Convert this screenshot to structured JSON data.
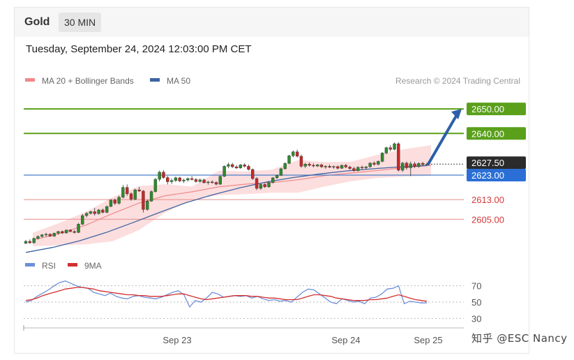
{
  "header": {
    "symbol": "Gold",
    "interval": "30 MIN"
  },
  "datetime": "Tuesday, September 24, 2024 12:03:00 PM CET",
  "legend": [
    {
      "label": "MA 20 + Bollinger Bands",
      "color": "#ef8a8a"
    },
    {
      "label": "MA 50",
      "color": "#3f63a3"
    }
  ],
  "credit": "Research © 2024 Trading Central",
  "watermark": "知乎 @ESC Nancy",
  "chart_data": [
    {
      "type": "candlestick",
      "x_ticks": [
        "Sep 23",
        "Sep 24",
        "Sep 25"
      ],
      "ylim": [
        2592,
        2656
      ],
      "levels": [
        {
          "value": 2650.0,
          "label": "2650.00",
          "color": "#5aa01b",
          "style": "target"
        },
        {
          "value": 2640.0,
          "label": "2640.00",
          "color": "#5aa01b",
          "style": "target"
        },
        {
          "value": 2627.5,
          "label": "2627.50",
          "color": "#222222",
          "style": "last"
        },
        {
          "value": 2623.0,
          "label": "2623.00",
          "color": "#2b6fd6",
          "style": "pivot"
        },
        {
          "value": 2613.0,
          "label": "2613.00",
          "color": "#d33a3a",
          "style": "support"
        },
        {
          "value": 2605.0,
          "label": "2605.00",
          "color": "#d33a3a",
          "style": "support"
        }
      ],
      "candles": [
        [
          2595.2,
          2596.6,
          2594.9,
          2596.0
        ],
        [
          2596.0,
          2596.8,
          2595.0,
          2595.4
        ],
        [
          2595.4,
          2597.5,
          2595.1,
          2597.2
        ],
        [
          2597.2,
          2598.4,
          2596.8,
          2598.0
        ],
        [
          2598.0,
          2599.1,
          2597.5,
          2598.6
        ],
        [
          2598.6,
          2599.5,
          2597.9,
          2598.9
        ],
        [
          2598.9,
          2599.3,
          2597.8,
          2598.1
        ],
        [
          2598.1,
          2599.6,
          2597.9,
          2599.3
        ],
        [
          2599.3,
          2600.3,
          2598.7,
          2600.0
        ],
        [
          2600.0,
          2600.4,
          2599.0,
          2599.4
        ],
        [
          2599.4,
          2600.8,
          2599.2,
          2600.6
        ],
        [
          2600.6,
          2600.9,
          2599.6,
          2600.0
        ],
        [
          2600.0,
          2600.6,
          2599.2,
          2599.6
        ],
        [
          2599.6,
          2603.5,
          2599.4,
          2603.0
        ],
        [
          2603.0,
          2607.2,
          2602.6,
          2606.5
        ],
        [
          2606.5,
          2608.0,
          2605.8,
          2607.4
        ],
        [
          2607.4,
          2608.5,
          2606.9,
          2608.1
        ],
        [
          2608.1,
          2609.6,
          2606.5,
          2607.3
        ],
        [
          2607.3,
          2609.2,
          2606.9,
          2608.8
        ],
        [
          2608.8,
          2609.4,
          2607.4,
          2607.8
        ],
        [
          2607.8,
          2610.6,
          2607.5,
          2610.2
        ],
        [
          2610.2,
          2613.2,
          2610.0,
          2612.8
        ],
        [
          2612.8,
          2613.4,
          2610.8,
          2611.5
        ],
        [
          2611.5,
          2614.6,
          2611.0,
          2614.0
        ],
        [
          2614.0,
          2619.0,
          2613.5,
          2618.0
        ],
        [
          2618.0,
          2619.2,
          2614.6,
          2615.4
        ],
        [
          2615.4,
          2616.0,
          2612.5,
          2613.2
        ],
        [
          2613.2,
          2617.5,
          2612.8,
          2617.0
        ],
        [
          2617.0,
          2618.2,
          2616.1,
          2616.5
        ],
        [
          2616.5,
          2616.9,
          2607.8,
          2609.0
        ],
        [
          2609.0,
          2613.0,
          2608.5,
          2612.4
        ],
        [
          2612.4,
          2616.8,
          2612.1,
          2616.3
        ],
        [
          2616.3,
          2621.8,
          2615.9,
          2621.3
        ],
        [
          2621.3,
          2624.8,
          2620.4,
          2624.2
        ],
        [
          2624.2,
          2625.0,
          2621.5,
          2622.0
        ],
        [
          2622.0,
          2622.7,
          2619.2,
          2620.3
        ],
        [
          2620.3,
          2621.6,
          2619.4,
          2620.8
        ],
        [
          2620.8,
          2622.4,
          2620.2,
          2621.9
        ],
        [
          2621.9,
          2622.3,
          2620.1,
          2620.6
        ],
        [
          2620.6,
          2621.5,
          2619.8,
          2621.0
        ],
        [
          2621.0,
          2622.0,
          2620.4,
          2621.6
        ],
        [
          2621.6,
          2622.6,
          2620.8,
          2621.2
        ],
        [
          2621.2,
          2621.8,
          2619.9,
          2620.4
        ],
        [
          2620.4,
          2621.6,
          2620.0,
          2621.1
        ],
        [
          2621.1,
          2621.5,
          2619.6,
          2619.9
        ],
        [
          2619.9,
          2620.6,
          2619.1,
          2620.2
        ],
        [
          2620.2,
          2620.9,
          2619.5,
          2620.0
        ],
        [
          2620.0,
          2620.5,
          2618.8,
          2619.3
        ],
        [
          2619.3,
          2622.9,
          2619.0,
          2622.5
        ],
        [
          2622.5,
          2627.0,
          2622.2,
          2626.6
        ],
        [
          2626.6,
          2628.1,
          2625.8,
          2627.3
        ],
        [
          2627.3,
          2628.0,
          2625.9,
          2626.4
        ],
        [
          2626.4,
          2627.1,
          2625.5,
          2625.9
        ],
        [
          2625.9,
          2627.5,
          2625.6,
          2627.2
        ],
        [
          2627.2,
          2627.8,
          2626.1,
          2626.6
        ],
        [
          2626.6,
          2627.3,
          2624.9,
          2625.3
        ],
        [
          2625.3,
          2625.7,
          2621.0,
          2621.6
        ],
        [
          2621.6,
          2622.2,
          2616.9,
          2617.6
        ],
        [
          2617.6,
          2619.5,
          2617.0,
          2619.2
        ],
        [
          2619.2,
          2619.6,
          2617.8,
          2618.2
        ],
        [
          2618.2,
          2620.3,
          2617.9,
          2620.0
        ],
        [
          2620.0,
          2622.2,
          2619.6,
          2621.9
        ],
        [
          2621.9,
          2623.3,
          2621.4,
          2622.9
        ],
        [
          2622.9,
          2626.0,
          2622.6,
          2625.6
        ],
        [
          2625.6,
          2628.2,
          2625.2,
          2627.8
        ],
        [
          2627.8,
          2631.3,
          2627.5,
          2630.9
        ],
        [
          2630.9,
          2633.0,
          2630.3,
          2632.5
        ],
        [
          2632.5,
          2633.4,
          2630.2,
          2630.7
        ],
        [
          2630.7,
          2631.4,
          2626.0,
          2626.6
        ],
        [
          2626.6,
          2628.0,
          2625.9,
          2627.5
        ],
        [
          2627.5,
          2628.2,
          2626.5,
          2627.0
        ],
        [
          2627.0,
          2627.8,
          2626.2,
          2626.7
        ],
        [
          2626.7,
          2627.6,
          2626.3,
          2627.2
        ],
        [
          2627.2,
          2627.7,
          2625.9,
          2626.4
        ],
        [
          2626.4,
          2627.0,
          2625.6,
          2626.6
        ],
        [
          2626.6,
          2627.3,
          2625.9,
          2626.2
        ],
        [
          2626.2,
          2626.9,
          2625.6,
          2626.5
        ],
        [
          2626.5,
          2626.9,
          2625.4,
          2625.8
        ],
        [
          2625.8,
          2627.3,
          2625.5,
          2627.0
        ],
        [
          2627.0,
          2627.6,
          2625.9,
          2626.3
        ],
        [
          2626.3,
          2626.8,
          2625.2,
          2625.7
        ],
        [
          2625.7,
          2626.4,
          2624.4,
          2624.8
        ],
        [
          2624.8,
          2626.6,
          2624.5,
          2626.2
        ],
        [
          2626.2,
          2626.9,
          2625.4,
          2626.0
        ],
        [
          2626.0,
          2626.7,
          2625.3,
          2626.4
        ],
        [
          2626.4,
          2628.2,
          2626.0,
          2627.9
        ],
        [
          2627.9,
          2628.6,
          2626.8,
          2627.4
        ],
        [
          2627.4,
          2629.0,
          2627.0,
          2628.6
        ],
        [
          2628.6,
          2632.4,
          2628.2,
          2632.0
        ],
        [
          2632.0,
          2634.6,
          2631.5,
          2634.2
        ],
        [
          2634.2,
          2635.2,
          2632.7,
          2633.5
        ],
        [
          2633.5,
          2636.3,
          2633.1,
          2635.8
        ],
        [
          2635.8,
          2636.4,
          2624.5,
          2625.0
        ],
        [
          2625.0,
          2628.4,
          2624.3,
          2627.9
        ],
        [
          2627.9,
          2628.6,
          2625.2,
          2626.0
        ],
        [
          2626.0,
          2628.5,
          2622.6,
          2627.6
        ],
        [
          2627.6,
          2628.4,
          2625.9,
          2626.5
        ],
        [
          2626.5,
          2628.2,
          2626.0,
          2627.8
        ],
        [
          2627.8,
          2628.4,
          2626.7,
          2627.3
        ],
        [
          2627.3,
          2628.1,
          2626.8,
          2627.5
        ]
      ],
      "ma50": [
        2591.5,
        2593.5,
        2596.2,
        2599.6,
        2603.6,
        2607.8,
        2611.8,
        2615.0,
        2617.8,
        2620.2,
        2622.0,
        2623.5,
        2624.7,
        2625.6,
        2626.4,
        2626.9
      ],
      "bollinger": {
        "mid": [
          2596.5,
          2599.2,
          2602.6,
          2607.3,
          2611.6,
          2614.6,
          2616.2,
          2618.2,
          2619.3,
          2620.0,
          2621.1,
          2622.8,
          2623.9,
          2624.9,
          2626.1,
          2627.0
        ],
        "upper": [
          2599.5,
          2603.5,
          2608.0,
          2614.0,
          2618.5,
          2619.3,
          2618.3,
          2624.8,
          2624.5,
          2625.2,
          2629.2,
          2628.3,
          2628.5,
          2631.3,
          2633.6,
          2635.2
        ],
        "lower": [
          2594.0,
          2594.4,
          2594.8,
          2596.0,
          2600.6,
          2607.8,
          2613.0,
          2614.8,
          2615.2,
          2615.8,
          2615.8,
          2618.4,
          2620.5,
          2621.9,
          2622.4,
          2622.8
        ]
      },
      "projection": {
        "from": 2627.5,
        "to": 2650.0
      }
    },
    {
      "type": "line",
      "levels": [
        70,
        50,
        30
      ],
      "ylim": [
        20,
        80
      ],
      "series": [
        {
          "name": "RSI",
          "color": "#6d8fd8",
          "values": [
            50,
            52,
            57,
            61,
            65,
            70,
            74,
            76,
            73,
            70,
            68,
            67,
            62,
            60,
            58,
            61,
            57,
            55,
            54,
            57,
            58,
            56,
            55,
            54,
            56,
            59,
            62,
            64,
            59,
            44,
            52,
            50,
            55,
            62,
            60,
            56,
            57,
            58,
            57,
            58,
            55,
            57,
            54,
            52,
            53,
            51,
            52,
            50,
            56,
            62,
            66,
            65,
            60,
            55,
            50,
            48,
            54,
            52,
            50,
            51,
            48,
            55,
            56,
            60,
            66,
            67,
            70,
            48,
            51,
            50,
            49,
            49
          ]
        },
        {
          "name": "9MA",
          "color": "#d32f2f",
          "values": [
            52,
            53,
            55,
            58,
            60,
            62,
            64,
            66,
            67,
            68,
            68,
            67,
            66,
            64,
            63,
            62,
            61,
            60,
            59,
            59,
            58,
            58,
            57,
            57,
            57,
            58,
            59,
            60,
            60,
            58,
            56,
            54,
            53,
            54,
            55,
            56,
            57,
            58,
            58,
            58,
            57,
            57,
            56,
            55,
            55,
            54,
            53,
            53,
            53,
            55,
            57,
            59,
            59,
            58,
            57,
            55,
            54,
            53,
            52,
            52,
            52,
            53,
            53,
            54,
            55,
            57,
            59,
            57,
            55,
            53,
            52,
            51
          ]
        }
      ]
    }
  ]
}
